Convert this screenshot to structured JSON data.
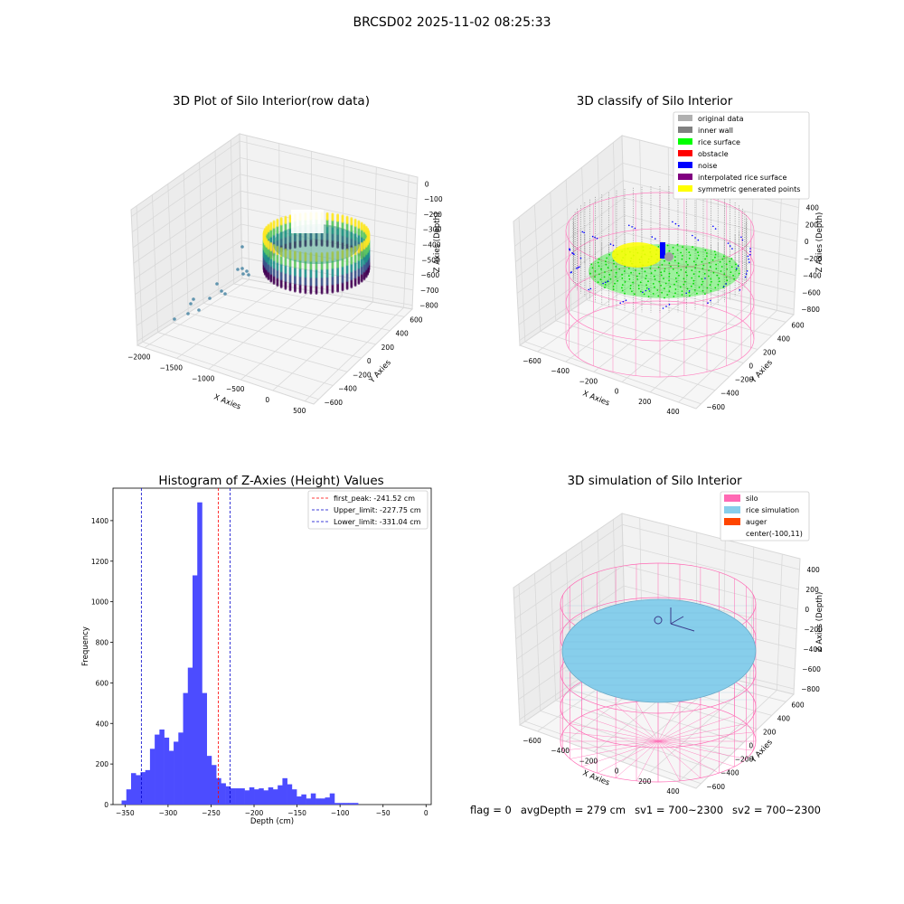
{
  "suptitle": "BRCSD02 2025-11-02 08:25:33",
  "footer": {
    "flag": "flag = 0",
    "avg_depth": "avgDepth = 279 cm",
    "sv1": "sv1 = 700~2300",
    "sv2": "sv2 = 700~2300"
  },
  "colors": {
    "histogram_bar": "#4c4cff",
    "peak_line": "#ff0000",
    "limit_line": "#0000cc",
    "legend_original": "#b0b0b0",
    "legend_inner_wall": "#808080",
    "legend_rice_surface": "#00ff00",
    "legend_obstacle": "#ff0000",
    "legend_noise": "#0000ff",
    "legend_interpolated": "#800080",
    "legend_symmetric": "#ffff00",
    "legend_silo": "#ff69b4",
    "legend_rice_sim": "#87ceeb",
    "legend_auger": "#ff4500"
  },
  "chart_data": [
    {
      "type": "scatter",
      "title": "3D Plot of Silo Interior(row data)",
      "xlabel": "X Axies",
      "ylabel": "Y Axies",
      "zlabel": "Z Axies (Depth)",
      "x_ticks": [
        "−2000",
        "−1500",
        "−1000",
        "−500",
        "0",
        "500"
      ],
      "y_ticks": [
        "−600",
        "−400",
        "−200",
        "0",
        "200",
        "400",
        "600"
      ],
      "z_ticks": [
        "0",
        "−100",
        "−200",
        "−300",
        "−400",
        "−500",
        "−600",
        "−700",
        "−800"
      ],
      "xlim": [
        -2100,
        550
      ],
      "ylim": [
        -650,
        650
      ],
      "zlim": [
        -850,
        30
      ],
      "colormap": "viridis"
    },
    {
      "type": "scatter",
      "title": "3D classify of Silo Interior",
      "xlabel": "X Axies",
      "ylabel": "Y Axies",
      "zlabel": "Z Axies (Depth)",
      "x_ticks": [
        "−600",
        "−400",
        "−200",
        "0",
        "200",
        "400"
      ],
      "y_ticks": [
        "−600",
        "−400",
        "−200",
        "0",
        "200",
        "400",
        "600"
      ],
      "z_ticks": [
        "400",
        "200",
        "0",
        "−200",
        "−400",
        "−600",
        "−800"
      ],
      "legend": [
        {
          "label": "original data",
          "color_key": "legend_original"
        },
        {
          "label": "inner wall",
          "color_key": "legend_inner_wall"
        },
        {
          "label": "rice surface",
          "color_key": "legend_rice_surface"
        },
        {
          "label": "obstacle",
          "color_key": "legend_obstacle"
        },
        {
          "label": "noise",
          "color_key": "legend_noise"
        },
        {
          "label": "interpolated rice surface",
          "color_key": "legend_interpolated"
        },
        {
          "label": "symmetric generated points",
          "color_key": "legend_symmetric"
        }
      ],
      "legend_position": "upper right"
    },
    {
      "type": "bar",
      "title": "Histogram of Z-Axies (Height) Values",
      "xlabel": "Depth (cm)",
      "ylabel": "Frequency",
      "xlim": [
        -364,
        6
      ],
      "ylim": [
        0,
        1560
      ],
      "x_ticks": [
        -350,
        -300,
        -250,
        -200,
        -150,
        -100,
        -50,
        0
      ],
      "y_ticks": [
        0,
        200,
        400,
        600,
        800,
        1000,
        1200,
        1400
      ],
      "bin_start": -354,
      "bin_width": 5.5,
      "values": [
        20,
        75,
        155,
        145,
        160,
        170,
        275,
        345,
        370,
        330,
        265,
        310,
        355,
        550,
        675,
        1130,
        1490,
        550,
        240,
        195,
        130,
        105,
        90,
        80,
        80,
        80,
        70,
        85,
        75,
        80,
        70,
        85,
        75,
        95,
        130,
        100,
        75,
        40,
        50,
        30,
        55,
        30,
        30,
        35,
        55,
        8,
        8,
        8,
        8,
        8
      ],
      "lines": [
        {
          "label": "first_peak: -241.52 cm",
          "x": -241.52,
          "color_key": "peak_line"
        },
        {
          "label": "Upper_limit: -227.75 cm",
          "x": -227.75,
          "color_key": "limit_line"
        },
        {
          "label": "Lower_limit: -331.04 cm",
          "x": -331.04,
          "color_key": "limit_line"
        }
      ],
      "legend_position": "upper right"
    },
    {
      "type": "scatter",
      "title": "3D simulation of Silo Interior",
      "xlabel": "X Axies",
      "ylabel": "Y Axies",
      "zlabel": "Z Axies (Depth)",
      "x_ticks": [
        "−600",
        "−400",
        "−200",
        "0",
        "200",
        "400"
      ],
      "y_ticks": [
        "−600",
        "−400",
        "−200",
        "0",
        "200",
        "400",
        "600"
      ],
      "z_ticks": [
        "400",
        "200",
        "0",
        "−200",
        "−400",
        "−600",
        "−800"
      ],
      "legend": [
        {
          "label": "silo",
          "color_key": "legend_silo"
        },
        {
          "label": "rice simulation",
          "color_key": "legend_rice_sim"
        },
        {
          "label": "auger",
          "color_key": "legend_auger"
        },
        {
          "label": "center(-100,11)",
          "color_key": ""
        }
      ],
      "legend_position": "upper right"
    }
  ]
}
